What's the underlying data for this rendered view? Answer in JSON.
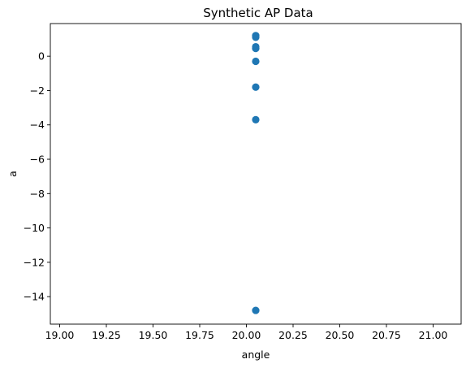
{
  "chart_data": {
    "type": "scatter",
    "title": "Synthetic AP Data",
    "xlabel": "angle",
    "ylabel": "a",
    "xlim": [
      18.95,
      21.15
    ],
    "ylim": [
      -15.6,
      1.9
    ],
    "xticks": [
      19.0,
      19.25,
      19.5,
      19.75,
      20.0,
      20.25,
      20.5,
      20.75,
      21.0
    ],
    "xtick_labels": [
      "19.00",
      "19.25",
      "19.50",
      "19.75",
      "20.00",
      "20.25",
      "20.50",
      "20.75",
      "21.00"
    ],
    "yticks": [
      0,
      -2,
      -4,
      -6,
      -8,
      -10,
      -12,
      -14
    ],
    "ytick_labels": [
      "0",
      "−2",
      "−4",
      "−6",
      "−8",
      "−10",
      "−12",
      "−14"
    ],
    "grid": false,
    "color": "#1f77b4",
    "points": [
      {
        "x": 20.05,
        "y": 1.2
      },
      {
        "x": 20.05,
        "y": 1.1
      },
      {
        "x": 20.05,
        "y": 0.55
      },
      {
        "x": 20.05,
        "y": 0.45
      },
      {
        "x": 20.05,
        "y": -0.3
      },
      {
        "x": 20.05,
        "y": -1.8
      },
      {
        "x": 20.05,
        "y": -3.7
      },
      {
        "x": 20.05,
        "y": -14.8
      }
    ]
  }
}
